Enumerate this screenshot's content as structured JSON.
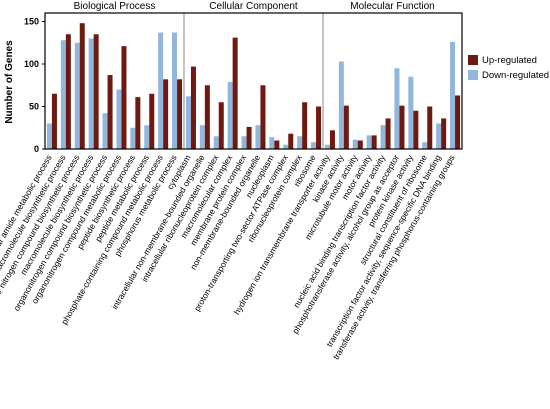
{
  "chart_data": {
    "type": "bar",
    "y_label": "Number of Genes",
    "groups": [
      {
        "name": "Biological Process",
        "categories": [
          "cellular amide metabolic process",
          "cellular macromolecule biosynthetic process",
          "cellular nitrogen compound biosynthetic process",
          "macromolecule biosynthetic process",
          "organonitrogen compound biosynthetic process",
          "organonitrogen compound metabolic process",
          "peptide biosynthetic process",
          "peptide metabolic process",
          "phosphate-containing compound metabolic process",
          "phosphorus metabolic process"
        ]
      },
      {
        "name": "Cellular Component",
        "categories": [
          "cytoplasm",
          "intracellular non-membrane-bounded organelle",
          "intracellular ribonucleoprotein complex",
          "macromolecular complex",
          "membrane protein complex",
          "non-membrane-bounded organelle",
          "nucleoplasm",
          "proton-transporting two-sector ATPase complex",
          "ribonucleoprotein complex",
          "ribosome"
        ]
      },
      {
        "name": "Molecular Function",
        "categories": [
          "hydrogen ion transmembrane transporter activity",
          "kinase activity",
          "microtubule motor activity",
          "motor activity",
          "nucleic acid binding transcription factor activity",
          "phosphotransferase activity, alcohol group as acceptor",
          "protein kinase activity",
          "structural constituent of ribosome",
          "transcription factor activity, sequence-specific DNA binding",
          "transferase activity, transferring phosphorus-containing groups"
        ]
      }
    ],
    "series": [
      {
        "name": "Down-regulated",
        "color": "#93b6dc",
        "values": [
          30,
          128,
          125,
          130,
          42,
          70,
          25,
          28,
          137,
          137,
          62,
          28,
          15,
          79,
          15,
          28,
          14,
          5,
          15,
          8,
          5,
          103,
          11,
          16,
          28,
          95,
          85,
          8,
          30,
          126
        ]
      },
      {
        "name": "Up-regulated",
        "color": "#6e1a10",
        "values": [
          65,
          135,
          148,
          135,
          87,
          121,
          61,
          65,
          82,
          82,
          97,
          75,
          55,
          131,
          26,
          75,
          10,
          18,
          55,
          50,
          22,
          51,
          10,
          16,
          36,
          51,
          45,
          50,
          36,
          63
        ]
      }
    ],
    "legend_order": [
      1,
      0
    ],
    "ylim": [
      0,
      160
    ],
    "yticks": [
      0,
      50,
      100,
      150
    ]
  }
}
